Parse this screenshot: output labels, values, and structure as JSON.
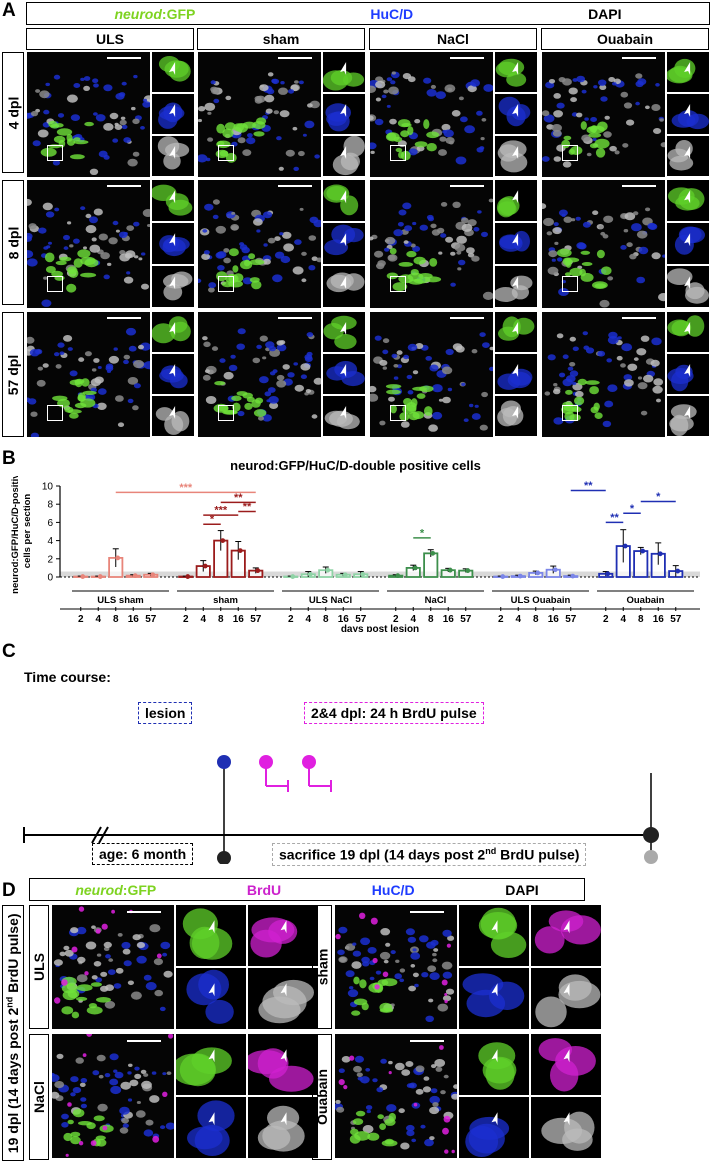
{
  "panels": {
    "a": "A",
    "b": "B",
    "c": "C",
    "d": "D"
  },
  "panelA": {
    "channels": [
      {
        "label": "neurod:GFP",
        "prefix": "neurod",
        "suffix": ":GFP",
        "color": "#7ed321"
      },
      {
        "label": "HuC/D",
        "color": "#1e3cff"
      },
      {
        "label": "DAPI",
        "color": "#000000"
      }
    ],
    "conditions": [
      "ULS",
      "sham",
      "NaCl",
      "Ouabain"
    ],
    "rows": [
      "4 dpl",
      "8 dpl",
      "57 dpl"
    ]
  },
  "panelB": {
    "title": "neurod:GFP/HuC/D-double positive cells",
    "ylabel_line1": "neurod:GFP/HuC/D-positive",
    "ylabel_line2": "cells per section",
    "xlabel": "days post lesion"
  },
  "chart_data": {
    "type": "bar",
    "title": "neurod:GFP/HuC/D-double positive cells",
    "xlabel": "days post lesion",
    "ylabel": "neurod:GFP/HuC/D-positive cells per section",
    "ylim": [
      0,
      10
    ],
    "yticks": [
      0,
      2,
      4,
      6,
      8,
      10
    ],
    "categories": [
      "2",
      "4",
      "8",
      "16",
      "57"
    ],
    "groups": [
      {
        "name": "ULS sham",
        "color": "#e8857a",
        "values": [
          0.05,
          0.05,
          2.1,
          0.15,
          0.25
        ],
        "err": [
          0.05,
          0.05,
          1.0,
          0.1,
          0.15
        ]
      },
      {
        "name": "sham",
        "color": "#9b1c1c",
        "values": [
          0.05,
          1.2,
          4.0,
          2.9,
          0.7
        ],
        "err": [
          0.05,
          0.6,
          1.1,
          1.0,
          0.3
        ]
      },
      {
        "name": "ULS NaCl",
        "color": "#8fd3a6",
        "values": [
          0.05,
          0.3,
          0.75,
          0.25,
          0.3
        ],
        "err": [
          0.05,
          0.3,
          0.35,
          0.15,
          0.3
        ]
      },
      {
        "name": "NaCl",
        "color": "#3d8f4c",
        "values": [
          0.15,
          1.0,
          2.6,
          0.75,
          0.7
        ],
        "err": [
          0.1,
          0.3,
          0.4,
          0.2,
          0.2
        ]
      },
      {
        "name": "ULS Ouabain",
        "color": "#7b86e8",
        "values": [
          0.05,
          0.1,
          0.45,
          0.8,
          0.1
        ],
        "err": [
          0.05,
          0.1,
          0.2,
          0.4,
          0.1
        ]
      },
      {
        "name": "Ouabain",
        "color": "#1f2fb3",
        "values": [
          0.35,
          3.4,
          2.85,
          2.55,
          0.65
        ],
        "err": [
          0.25,
          1.8,
          0.4,
          1.2,
          0.6
        ]
      }
    ],
    "significance": [
      {
        "stars": "***",
        "color": "#e8857a"
      },
      {
        "stars": "**",
        "color": "#9b1c1c"
      },
      {
        "stars": "***",
        "color": "#9b1c1c"
      },
      {
        "stars": "*",
        "color": "#9b1c1c"
      },
      {
        "stars": "**",
        "color": "#9b1c1c"
      },
      {
        "stars": "*",
        "color": "#3d8f4c"
      },
      {
        "stars": "**",
        "color": "#1f2fb3"
      },
      {
        "stars": "*",
        "color": "#1f2fb3"
      },
      {
        "stars": "**",
        "color": "#1f2fb3"
      },
      {
        "stars": "*",
        "color": "#1f2fb3"
      }
    ]
  },
  "panelC": {
    "title": "Time course:",
    "lesion": "lesion",
    "pulse": "2&4 dpl: 24 h BrdU pulse",
    "age": "age: 6 month",
    "sacrifice_pre": "sacrifice 19 dpl (14 days post 2",
    "sacrifice_sup": "nd",
    "sacrifice_post": " BrdU pulse)",
    "colors": {
      "lesion": "#1f2fb3",
      "pulse": "#e020e0",
      "age": "#000000",
      "sacrifice": "#aaaaaa"
    }
  },
  "panelD": {
    "channels": [
      {
        "label": "neurod:GFP",
        "prefix": "neurod",
        "suffix": ":GFP",
        "color": "#7ed321"
      },
      {
        "label": "BrdU",
        "color": "#cc22cc"
      },
      {
        "label": "HuC/D",
        "color": "#1e3cff"
      },
      {
        "label": "DAPI",
        "color": "#000000"
      }
    ],
    "side_pre": "19 dpl (14 days post 2",
    "side_sup": "nd",
    "side_post": " BrdU pulse)",
    "conditions": [
      "ULS",
      "sham",
      "NaCl",
      "Ouabain"
    ]
  }
}
